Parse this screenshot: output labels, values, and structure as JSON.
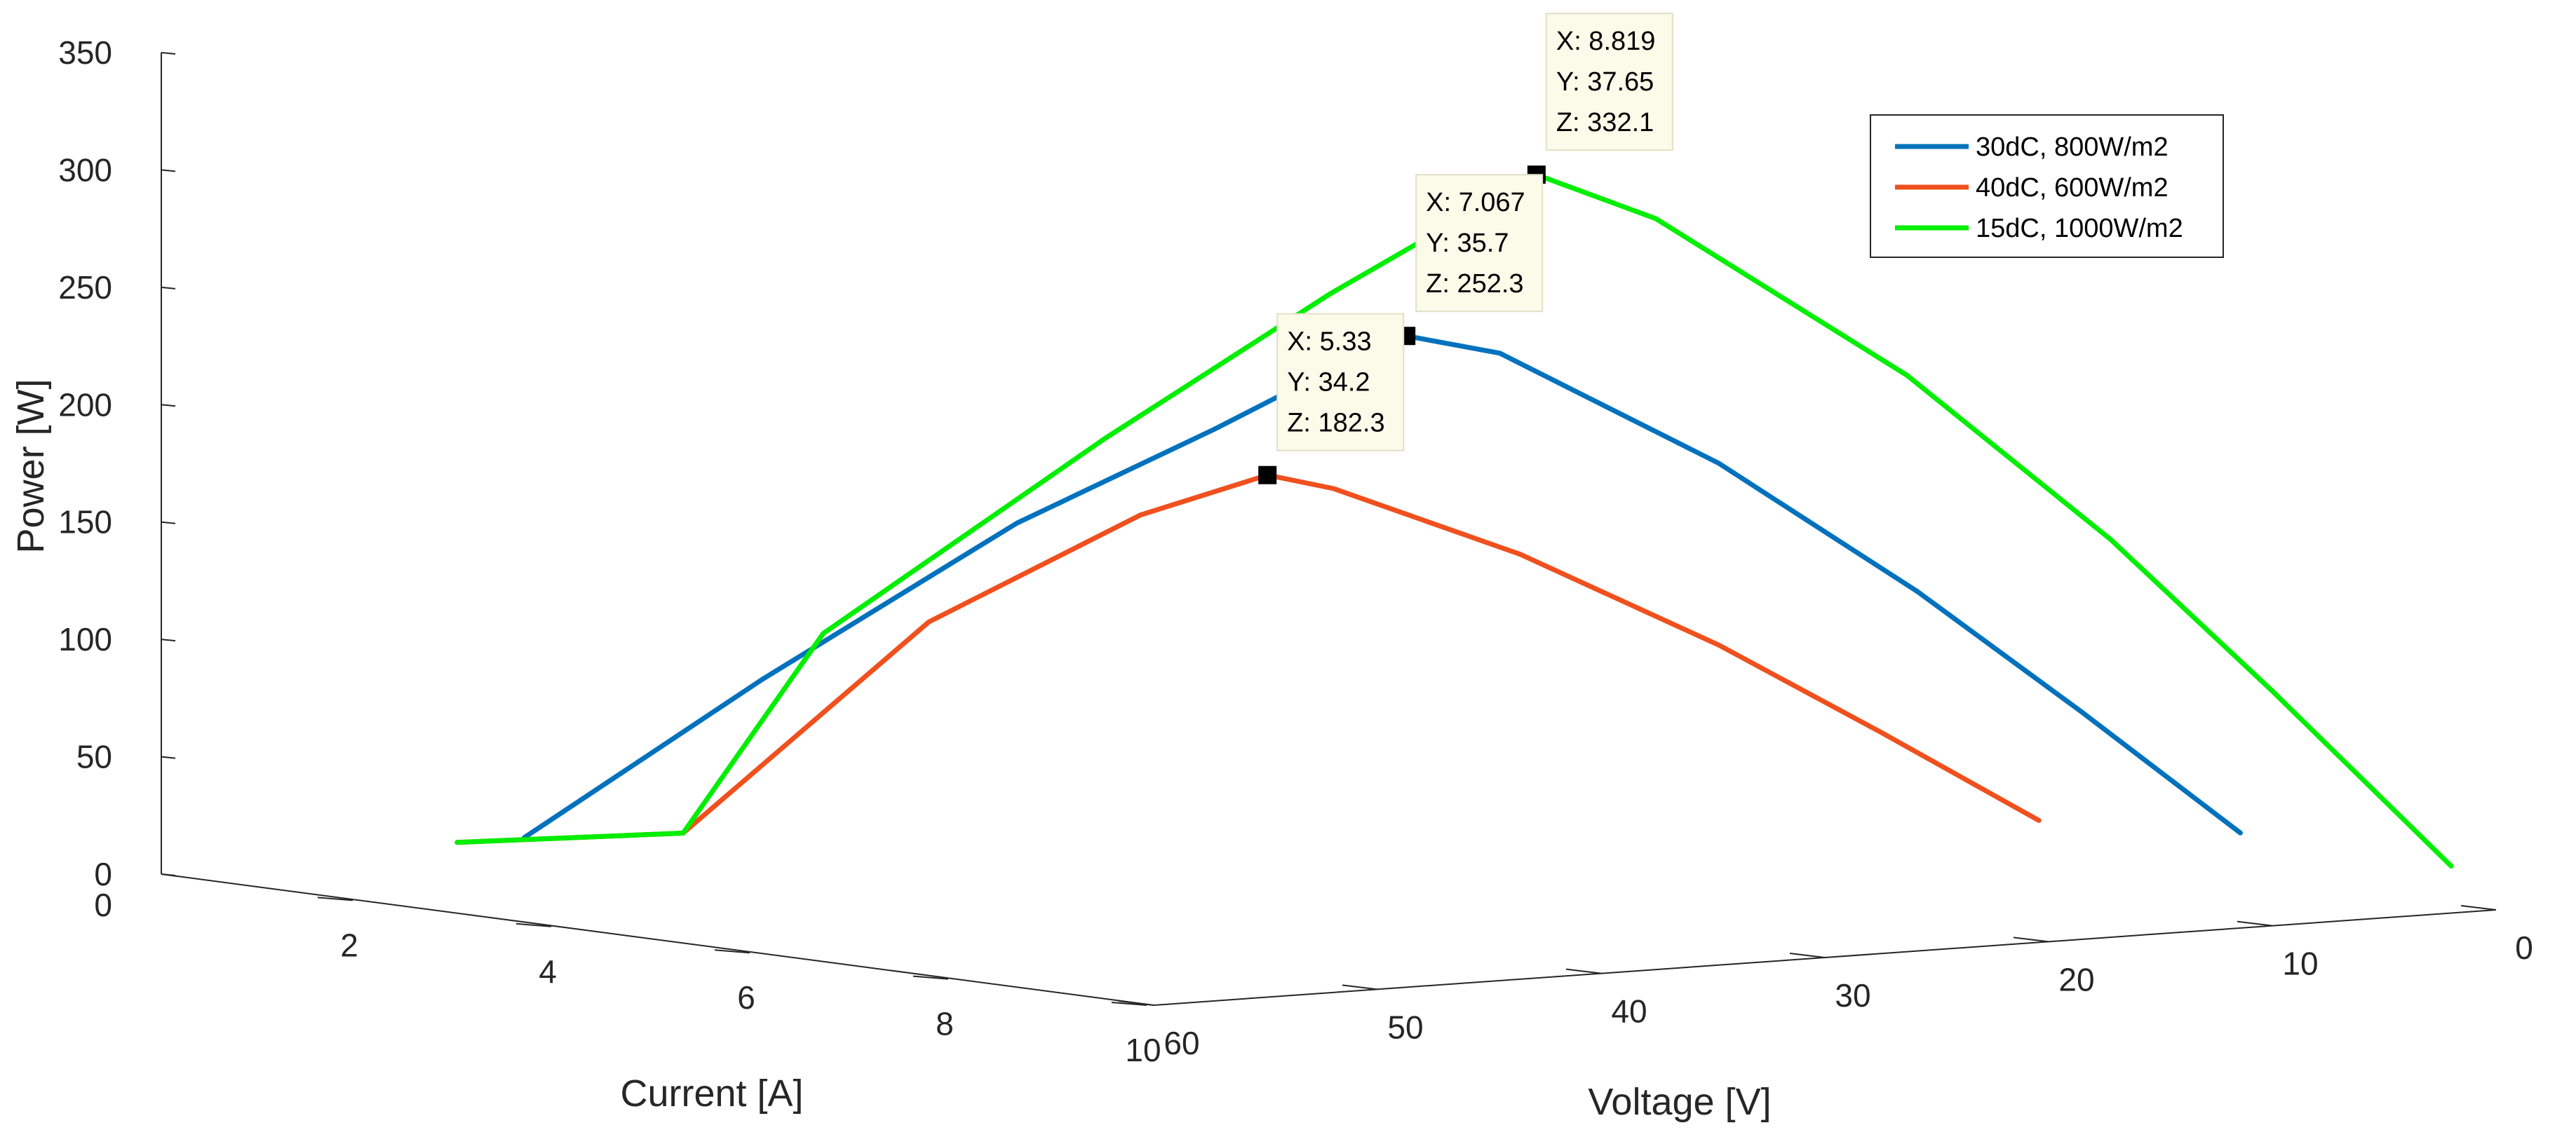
{
  "chart_data": {
    "type": "line",
    "projection": "3d",
    "xlabel": "Current [A]",
    "ylabel": "Voltage [V]",
    "zlabel": "Power [W]",
    "xlim": [
      0,
      10
    ],
    "ylim": [
      0,
      60
    ],
    "zlim": [
      0,
      350
    ],
    "x_ticks": [
      "2",
      "4",
      "6",
      "8",
      "10"
    ],
    "x_tick_values": [
      2,
      4,
      6,
      8,
      10
    ],
    "y_ticks": [
      "60",
      "50",
      "40",
      "30",
      "20",
      "10",
      "0"
    ],
    "y_tick_values": [
      60,
      50,
      40,
      30,
      20,
      10,
      0
    ],
    "z_ticks": [
      "0",
      "50",
      "100",
      "150",
      "200",
      "250",
      "300",
      "350"
    ],
    "z_tick_values": [
      0,
      50,
      100,
      150,
      200,
      250,
      300,
      350
    ],
    "x_origin_label": "0",
    "legend_position": "top-right",
    "series": [
      {
        "name": "30dC, 800W/m2",
        "color": "#0072bd",
        "points": [
          [
            0.05,
            44.0,
            5.0
          ],
          [
            2.0,
            42.0,
            82.0
          ],
          [
            4.0,
            39.5,
            158.0
          ],
          [
            5.5,
            37.3,
            205.0
          ],
          [
            6.5,
            36.4,
            236.0
          ],
          [
            7.067,
            35.7,
            252.3
          ],
          [
            7.4,
            33.0,
            245.0
          ],
          [
            7.8,
            25.0,
            195.0
          ],
          [
            8.0,
            17.0,
            136.0
          ],
          [
            8.07,
            10.0,
            80.6
          ],
          [
            8.1,
            3.0,
            24.2
          ]
        ]
      },
      {
        "name": "40dC, 600W/m2",
        "color": "#f0501e",
        "points": [
          [
            0.05,
            47.0,
            5.0
          ],
          [
            1.2,
            42.0,
            12.0
          ],
          [
            3.0,
            39.0,
            110.0
          ],
          [
            4.5,
            36.2,
            162.0
          ],
          [
            5.33,
            34.2,
            182.3
          ],
          [
            5.5,
            32.0,
            176.0
          ],
          [
            5.8,
            25.0,
            145.0
          ],
          [
            6.0,
            17.0,
            102.0
          ],
          [
            6.05,
            10.0,
            60.5
          ],
          [
            6.07,
            3.0,
            18.2
          ]
        ]
      },
      {
        "name": "15dC, 1000W/m2",
        "color": "#00ee00",
        "points": [
          [
            0.05,
            47.0,
            5.0
          ],
          [
            1.2,
            42.0,
            12.0
          ],
          [
            2.5,
            41.5,
            104.0
          ],
          [
            5.0,
            40.0,
            200.0
          ],
          [
            7.0,
            38.8,
            272.0
          ],
          [
            8.819,
            37.65,
            332.1
          ],
          [
            9.2,
            34.0,
            313.0
          ],
          [
            9.7,
            25.0,
            243.0
          ],
          [
            9.95,
            17.0,
            169.0
          ],
          [
            10.0,
            10.0,
            100.0
          ],
          [
            10.0,
            2.0,
            20.0
          ]
        ]
      }
    ],
    "data_tips": [
      {
        "series": 2,
        "x": 8.819,
        "y": 37.65,
        "z": 332.1,
        "lines": [
          "X: 8.819",
          "Y: 37.65",
          "Z: 332.1"
        ]
      },
      {
        "series": 0,
        "x": 7.067,
        "y": 35.7,
        "z": 252.3,
        "lines": [
          "X: 7.067",
          "Y: 35.7",
          "Z: 252.3"
        ]
      },
      {
        "series": 1,
        "x": 5.33,
        "y": 34.2,
        "z": 182.3,
        "lines": [
          "X: 5.33",
          "Y: 34.2",
          "Z: 182.3"
        ]
      }
    ]
  }
}
